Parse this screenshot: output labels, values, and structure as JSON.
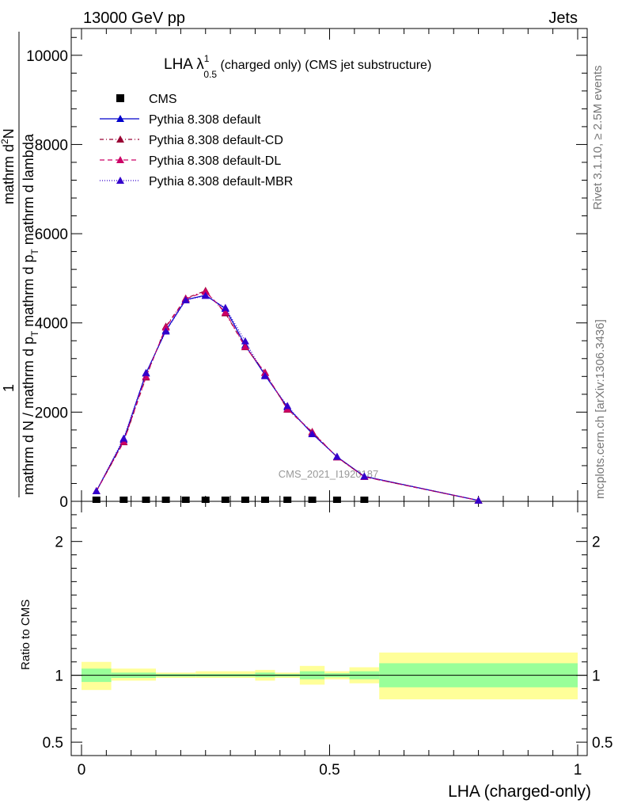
{
  "header": {
    "left": "13000 GeV pp",
    "right": "Jets"
  },
  "side": {
    "top": "Rivet 3.1.10, ≥ 2.5M events",
    "bottom": "mcplots.cern.ch [arXiv:1306.3436]"
  },
  "watermark": "CMS_2021_I1920187",
  "chart_data": [
    {
      "type": "line",
      "title_main": "LHA λ",
      "title_sup": "1",
      "title_sub": "0.5",
      "title_rest": " (charged only) (CMS jet substructure)",
      "ylabel_numerator": "mathrm d",
      "ylabel_num_super": "2",
      "ylabel_num_end": "N",
      "ylabel_one": "1",
      "ylabel_denominator_a": "mathrm d N / mathrm d p",
      "ylabel_denominator_sub": "T",
      "ylabel_denominator_b": " mathrm d p",
      "ylabel_denominator_sub2": "T",
      "ylabel_denominator_c": " mathrm d lambda",
      "xlim": [
        0,
        1
      ],
      "ylim": [
        0,
        10600
      ],
      "yticks": [
        0,
        2000,
        4000,
        6000,
        8000,
        10000
      ],
      "ytick_labels": [
        "0",
        "2000",
        "4000",
        "6000",
        "8000",
        "10000"
      ],
      "legend_position": "top-left",
      "series": [
        {
          "name": "CMS",
          "color": "#000000",
          "marker": "square",
          "x": [
            0.03,
            0.085,
            0.13,
            0.17,
            0.21,
            0.25,
            0.29,
            0.33,
            0.37,
            0.415,
            0.465,
            0.515,
            0.57
          ],
          "values": [
            0,
            0,
            0,
            0,
            0,
            0,
            0,
            0,
            0,
            0,
            0,
            0,
            0
          ]
        },
        {
          "name": "Pythia 8.308 default",
          "color": "#0000cc",
          "dash": "",
          "marker": "triangle",
          "x": [
            0.03,
            0.085,
            0.13,
            0.17,
            0.21,
            0.25,
            0.29,
            0.33,
            0.37,
            0.415,
            0.465,
            0.515,
            0.57,
            0.8
          ],
          "values": [
            230,
            1380,
            2870,
            3830,
            4520,
            4620,
            4320,
            3500,
            2830,
            2110,
            1520,
            1000,
            560,
            20
          ]
        },
        {
          "name": "Pythia 8.308 default-CD",
          "color": "#990033",
          "dash": "5,3,1,3",
          "marker": "triangle",
          "x": [
            0.03,
            0.085,
            0.13,
            0.17,
            0.21,
            0.25,
            0.29,
            0.33,
            0.37,
            0.415,
            0.465,
            0.515,
            0.57,
            0.8
          ],
          "values": [
            230,
            1330,
            2780,
            3920,
            4550,
            4720,
            4220,
            3460,
            2890,
            2060,
            1560,
            990,
            550,
            20
          ]
        },
        {
          "name": "Pythia 8.308 default-DL",
          "color": "#cc0066",
          "dash": "6,4",
          "marker": "triangle",
          "x": [
            0.03,
            0.085,
            0.13,
            0.17,
            0.21,
            0.25,
            0.29,
            0.33,
            0.37,
            0.415,
            0.465,
            0.515,
            0.57,
            0.8
          ],
          "values": [
            230,
            1340,
            2800,
            3900,
            4540,
            4700,
            4240,
            3470,
            2880,
            2070,
            1550,
            990,
            550,
            20
          ]
        },
        {
          "name": "Pythia 8.308 default-MBR",
          "color": "#3300cc",
          "dash": "1,2",
          "marker": "triangle",
          "x": [
            0.03,
            0.085,
            0.13,
            0.17,
            0.21,
            0.25,
            0.29,
            0.33,
            0.37,
            0.415,
            0.465,
            0.515,
            0.57,
            0.8
          ],
          "values": [
            230,
            1410,
            2880,
            3810,
            4510,
            4610,
            4340,
            3590,
            2810,
            2140,
            1510,
            1000,
            560,
            20
          ]
        }
      ]
    },
    {
      "type": "area",
      "ylabel": "Ratio to CMS",
      "xlabel": "LHA (charged-only)",
      "xlim": [
        0,
        1
      ],
      "ylim": [
        0.4,
        2.3
      ],
      "xticks": [
        0,
        0.5,
        1
      ],
      "xtick_labels": [
        "0",
        "0.5",
        "1"
      ],
      "yticks": [
        0.5,
        1,
        2
      ],
      "ytick_labels": [
        "0.5",
        "1",
        "2"
      ],
      "reference": 1,
      "bins": [
        {
          "x0": 0.0,
          "x1": 0.06,
          "inner": [
            0.95,
            1.05
          ],
          "outer": [
            0.89,
            1.1
          ]
        },
        {
          "x0": 0.06,
          "x1": 0.15,
          "inner": [
            0.98,
            1.02
          ],
          "outer": [
            0.96,
            1.05
          ]
        },
        {
          "x0": 0.15,
          "x1": 0.23,
          "inner": [
            0.99,
            1.01
          ],
          "outer": [
            0.98,
            1.02
          ]
        },
        {
          "x0": 0.23,
          "x1": 0.35,
          "inner": [
            0.99,
            1.01
          ],
          "outer": [
            0.98,
            1.03
          ]
        },
        {
          "x0": 0.35,
          "x1": 0.39,
          "inner": [
            0.985,
            1.02
          ],
          "outer": [
            0.96,
            1.04
          ]
        },
        {
          "x0": 0.39,
          "x1": 0.44,
          "inner": [
            0.99,
            1.01
          ],
          "outer": [
            0.98,
            1.02
          ]
        },
        {
          "x0": 0.44,
          "x1": 0.49,
          "inner": [
            0.97,
            1.03
          ],
          "outer": [
            0.93,
            1.07
          ]
        },
        {
          "x0": 0.49,
          "x1": 0.54,
          "inner": [
            0.985,
            1.015
          ],
          "outer": [
            0.97,
            1.03
          ]
        },
        {
          "x0": 0.54,
          "x1": 0.6,
          "inner": [
            0.97,
            1.03
          ],
          "outer": [
            0.94,
            1.06
          ]
        },
        {
          "x0": 0.6,
          "x1": 1.0,
          "inner": [
            0.91,
            1.09
          ],
          "outer": [
            0.82,
            1.17
          ]
        }
      ],
      "band_colors": {
        "inner": "#99ff99",
        "outer": "#ffff99"
      }
    }
  ]
}
